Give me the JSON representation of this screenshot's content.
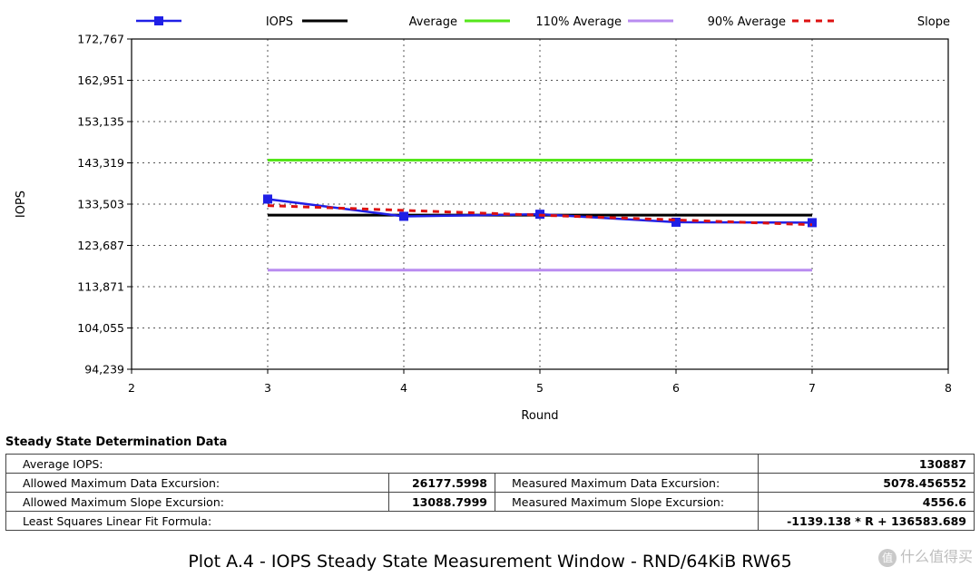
{
  "chart_data": {
    "type": "line",
    "title": "",
    "xlabel": "Round",
    "ylabel": "IOPS",
    "xlim": [
      2,
      8
    ],
    "ylim": [
      94239,
      172767
    ],
    "x_ticks": [
      "2",
      "3",
      "4",
      "5",
      "6",
      "7",
      "8"
    ],
    "y_ticks": [
      "94,239",
      "104,055",
      "113,871",
      "123,687",
      "133,503",
      "143,319",
      "153,135",
      "162,951",
      "172,767"
    ],
    "grid": "dotted",
    "legend": {
      "placement": "top",
      "entries": [
        "IOPS",
        "Average",
        "110% Average",
        "90% Average",
        "Slope"
      ]
    },
    "series": [
      {
        "name": "IOPS",
        "color": "#1f1fe6",
        "style": "line-square-markers",
        "x": [
          3,
          4,
          5,
          6,
          7
        ],
        "values": [
          134700,
          130600,
          131100,
          129200,
          129100
        ]
      },
      {
        "name": "Average",
        "color": "#000000",
        "style": "solid",
        "x": [
          3,
          7
        ],
        "values": [
          130887,
          130887
        ]
      },
      {
        "name": "110% Average",
        "color": "#55e61a",
        "style": "solid",
        "x": [
          3,
          7
        ],
        "values": [
          143975.7,
          143975.7
        ]
      },
      {
        "name": "90% Average",
        "color": "#b98cf0",
        "style": "solid",
        "x": [
          3,
          7
        ],
        "values": [
          117798.3,
          117798.3
        ]
      },
      {
        "name": "Slope",
        "color": "#dd1111",
        "style": "dashed",
        "x": [
          3,
          7
        ],
        "values": [
          133166.3,
          128609.7
        ]
      }
    ]
  },
  "table": {
    "title": "Steady State Determination Data",
    "average_label": "Average IOPS:",
    "average_value": "130887",
    "allowed_data_label": "Allowed Maximum Data Excursion:",
    "allowed_data_value": "26177.5998",
    "measured_data_label": "Measured Maximum Data Excursion:",
    "measured_data_value": "5078.456552",
    "allowed_slope_label": "Allowed Maximum Slope Excursion:",
    "allowed_slope_value": "13088.7999",
    "measured_slope_label": "Measured Maximum Slope Excursion:",
    "measured_slope_value": "4556.6",
    "formula_label": "Least Squares Linear Fit Formula:",
    "formula_value": "-1139.138 * R + 136583.689"
  },
  "caption": "Plot A.4 - IOPS Steady State Measurement Window - RND/64KiB RW65",
  "watermark": {
    "icon_text": "值",
    "text": "什么值得买"
  }
}
